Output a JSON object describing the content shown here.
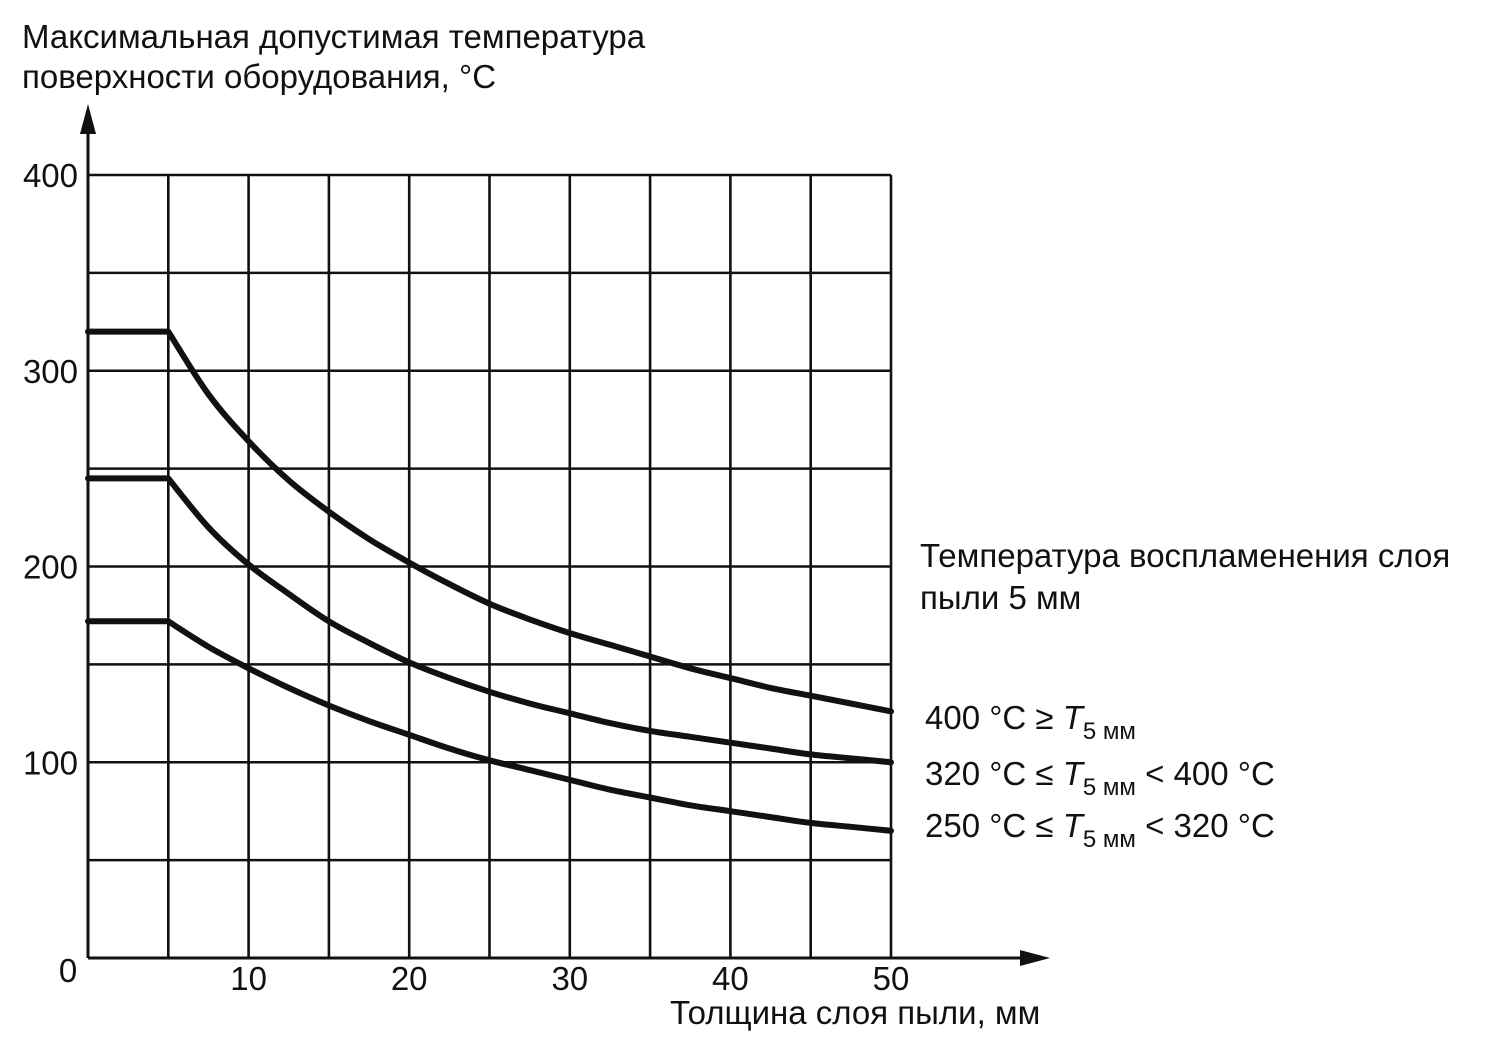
{
  "chart_data": {
    "type": "line",
    "ylabel_line1": "Максимальная допустимая температура",
    "ylabel_line2": "поверхности оборудования, °С",
    "xlabel": "Толщина слоя пыли, мм",
    "origin_label": "0",
    "x_ticks": [
      "10",
      "20",
      "30",
      "40",
      "50"
    ],
    "y_ticks": [
      "100",
      "200",
      "300",
      "400"
    ],
    "xlim": [
      0,
      50
    ],
    "ylim": [
      0,
      400
    ],
    "grid": true,
    "legend_title_line1": "Температура воспламенения слоя",
    "legend_title_line2": "пыли 5 мм",
    "x": [
      0,
      5,
      7.5,
      10,
      12.5,
      15,
      17.5,
      20,
      22.5,
      25,
      27.5,
      30,
      32.5,
      35,
      37.5,
      40,
      42.5,
      45,
      47.5,
      50
    ],
    "series": [
      {
        "name": "400 °C ≥ T5 мм",
        "name_parts": {
          "left": "400 °C ≥ ",
          "var": "T",
          "sub": "5 мм",
          "right": ""
        },
        "values": [
          320,
          320,
          288,
          264,
          244,
          228,
          214,
          202,
          191,
          181,
          173,
          166,
          160,
          154,
          148,
          143,
          138,
          134,
          130,
          126
        ]
      },
      {
        "name": "320 °C ≤ T5 мм < 400 °C",
        "name_parts": {
          "left": "320 °C ≤ ",
          "var": "T",
          "sub": "5 мм",
          "right": " < 400 °C"
        },
        "values": [
          245,
          245,
          220,
          201,
          186,
          172,
          161,
          151,
          143,
          136,
          130,
          125,
          120,
          116,
          113,
          110,
          107,
          104,
          102,
          100
        ]
      },
      {
        "name": "250 °C ≤ T5 мм < 320 °C",
        "name_parts": {
          "left": "250 °C ≤ ",
          "var": "T",
          "sub": "5 мм",
          "right": " < 320 °C"
        },
        "values": [
          172,
          172,
          159,
          148,
          138,
          129,
          121,
          114,
          107,
          101,
          96,
          91,
          86,
          82,
          78,
          75,
          72,
          69,
          67,
          65
        ]
      }
    ]
  }
}
